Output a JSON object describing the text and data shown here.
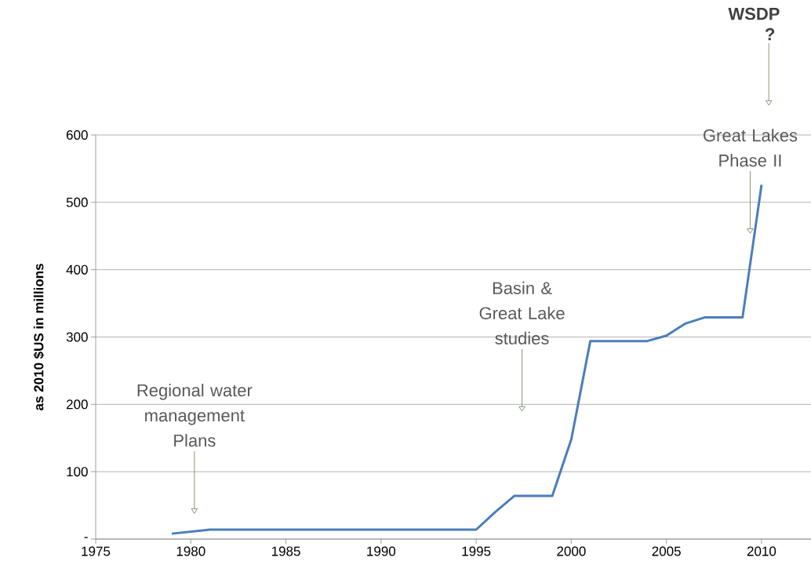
{
  "chart_data": {
    "type": "line",
    "ylabel": "as 2010 $US in millions",
    "x": [
      1979,
      1981,
      1995,
      1996,
      1997,
      1999,
      2000,
      2001,
      2004,
      2005,
      2006,
      2007,
      2009,
      2010
    ],
    "values": [
      8,
      14,
      14,
      40,
      64,
      64,
      148,
      294,
      294,
      302,
      320,
      329,
      329,
      526
    ],
    "color": "#4a7ebb",
    "xlim": [
      1975,
      2012.6
    ],
    "xticks": [
      1975,
      1980,
      1985,
      1990,
      1995,
      2000,
      2005,
      2010
    ],
    "ylim": [
      0,
      600
    ],
    "yticks": [
      {
        "value": 0,
        "label": "-"
      },
      100,
      200,
      300,
      400,
      500,
      600
    ],
    "grid": "y",
    "marker": "none",
    "line_style": "solid",
    "annotations": [
      "Regional water management Plans",
      "Basin & Great Lake studies",
      "Great Lakes Phase II",
      "WSDP ?"
    ]
  }
}
